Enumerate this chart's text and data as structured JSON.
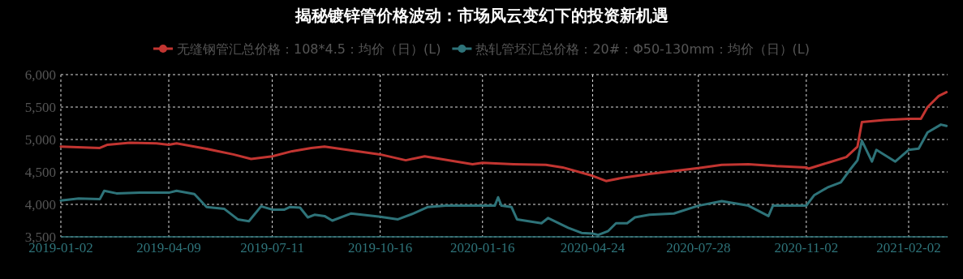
{
  "chart_data": {
    "type": "line",
    "title": "揭秘镀锌管价格波动：市场风云变幻下的投资新机遇",
    "legend": "top",
    "grid": true,
    "line_style": "solid",
    "xlim": [
      "2019-01-02",
      "2021-03-09"
    ],
    "xticks": [
      "2019-01-02",
      "2019-04-09",
      "2019-07-11",
      "2019-10-16",
      "2020-01-16",
      "2020-04-24",
      "2020-07-28",
      "2020-11-02",
      "2021-02-02"
    ],
    "ylim": [
      3500,
      6000
    ],
    "yticks": [
      {
        "value": 3500,
        "label": "3,500"
      },
      {
        "value": 4000,
        "label": "4,000"
      },
      {
        "value": 4500,
        "label": "4,500"
      },
      {
        "value": 5000,
        "label": "5,000"
      },
      {
        "value": 5500,
        "label": "5,500"
      },
      {
        "value": 6000,
        "label": "6,000"
      }
    ],
    "series": [
      {
        "name": "无缝钢管汇总价格：108*4.5：均价（日）(L)",
        "color": "#c23531",
        "x": [
          "2019-01-02",
          "2019-02-06",
          "2019-02-13",
          "2019-03-05",
          "2019-03-29",
          "2019-04-09",
          "2019-04-16",
          "2019-05-12",
          "2019-06-06",
          "2019-06-22",
          "2019-07-11",
          "2019-07-29",
          "2019-08-15",
          "2019-08-27",
          "2019-10-16",
          "2019-11-08",
          "2019-11-25",
          "2020-01-07",
          "2020-01-16",
          "2020-02-13",
          "2020-03-13",
          "2020-03-28",
          "2020-04-24",
          "2020-05-06",
          "2020-05-21",
          "2020-06-14",
          "2020-07-28",
          "2020-08-18",
          "2020-09-11",
          "2020-10-06",
          "2020-11-02",
          "2020-11-04",
          "2020-11-23",
          "2020-12-08",
          "2020-12-18",
          "2020-12-22",
          "2021-01-11",
          "2021-02-02",
          "2021-02-13",
          "2021-02-19",
          "2021-03-01",
          "2021-03-08"
        ],
        "values": [
          4890,
          4870,
          4920,
          4950,
          4940,
          4920,
          4940,
          4860,
          4770,
          4700,
          4740,
          4820,
          4870,
          4890,
          4770,
          4680,
          4740,
          4620,
          4640,
          4620,
          4610,
          4570,
          4440,
          4360,
          4410,
          4470,
          4560,
          4610,
          4620,
          4590,
          4570,
          4550,
          4650,
          4730,
          4890,
          5270,
          5300,
          5320,
          5320,
          5500,
          5670,
          5730
        ]
      },
      {
        "name": "热轧管坯汇总价格：20#：Φ50-130mm：均价（日）(L)",
        "color": "#2e7379",
        "x": [
          "2019-01-02",
          "2019-01-18",
          "2019-02-06",
          "2019-02-10",
          "2019-02-21",
          "2019-03-14",
          "2019-04-09",
          "2019-04-16",
          "2019-05-02",
          "2019-05-13",
          "2019-05-29",
          "2019-06-10",
          "2019-06-20",
          "2019-07-01",
          "2019-07-11",
          "2019-07-22",
          "2019-07-27",
          "2019-08-05",
          "2019-08-12",
          "2019-08-18",
          "2019-08-27",
          "2019-09-03",
          "2019-09-20",
          "2019-10-16",
          "2019-11-01",
          "2019-11-15",
          "2019-11-28",
          "2019-12-14",
          "2020-01-16",
          "2020-01-27",
          "2020-01-30",
          "2020-02-02",
          "2020-02-11",
          "2020-02-16",
          "2020-03-09",
          "2020-03-15",
          "2020-04-02",
          "2020-04-14",
          "2020-04-24",
          "2020-04-29",
          "2020-05-08",
          "2020-05-15",
          "2020-05-25",
          "2020-06-01",
          "2020-06-14",
          "2020-07-06",
          "2020-07-28",
          "2020-08-18",
          "2020-09-11",
          "2020-09-29",
          "2020-10-03",
          "2020-11-02",
          "2020-11-09",
          "2020-11-21",
          "2020-12-03",
          "2020-12-12",
          "2020-12-18",
          "2020-12-22",
          "2020-12-31",
          "2021-01-04",
          "2021-01-21",
          "2021-02-02",
          "2021-02-11",
          "2021-02-19",
          "2021-03-03",
          "2021-03-08"
        ],
        "values": [
          4060,
          4090,
          4080,
          4210,
          4170,
          4180,
          4180,
          4210,
          4160,
          3960,
          3930,
          3770,
          3740,
          3970,
          3920,
          3920,
          3960,
          3950,
          3800,
          3840,
          3820,
          3750,
          3860,
          3810,
          3770,
          3860,
          3960,
          3980,
          3980,
          3980,
          4110,
          3980,
          3960,
          3770,
          3710,
          3790,
          3640,
          3560,
          3550,
          3530,
          3590,
          3710,
          3710,
          3800,
          3840,
          3860,
          3980,
          4050,
          3980,
          3820,
          3980,
          3980,
          4140,
          4260,
          4340,
          4550,
          4680,
          4980,
          4660,
          4840,
          4660,
          4840,
          4860,
          5110,
          5230,
          5210
        ]
      }
    ]
  }
}
